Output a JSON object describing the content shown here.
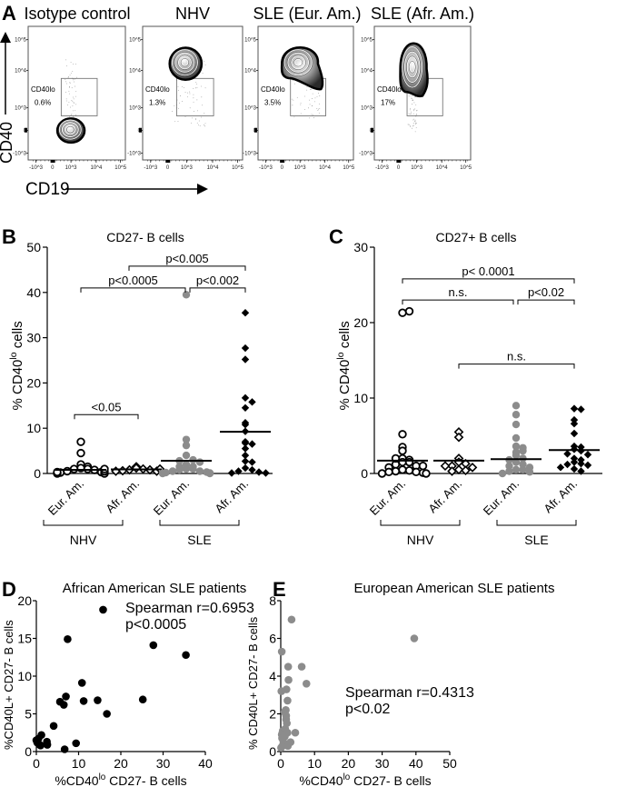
{
  "colors": {
    "black": "#000000",
    "gray_marker": "#8c8c8c",
    "axis": "#000000"
  },
  "panel_a": {
    "letter": "A",
    "y_axis_label": "CD40",
    "x_axis_label": "CD19",
    "tick_labels": [
      "-10^3",
      "0",
      "10^3",
      "10^4",
      "10^5"
    ],
    "plots": [
      {
        "title": "Isotype control",
        "gate_label": "CD40lo",
        "gate_percent": "0.6%"
      },
      {
        "title": "NHV",
        "gate_label": "CD40lo",
        "gate_percent": "1.3%"
      },
      {
        "title": "SLE (Eur. Am.)",
        "gate_label": "CD40lo",
        "gate_percent": "3.5%"
      },
      {
        "title": "SLE (Afr. Am.)",
        "gate_label": "CD40lo",
        "gate_percent": "17%"
      }
    ]
  },
  "chart_data": [
    {
      "panel": "B",
      "type": "scatter",
      "title": "CD27- B cells",
      "ylabel": {
        "main": "% CD40",
        "sup": "lo",
        "tail": " cells"
      },
      "ylim": [
        0,
        50
      ],
      "yticks": [
        "0",
        "10",
        "20",
        "30",
        "40",
        "50"
      ],
      "categories": [
        "Eur. Am.",
        "Afr. Am.",
        "Eur. Am.",
        "Afr. Am."
      ],
      "groups": [
        {
          "label": "NHV",
          "categories": [
            0,
            1
          ]
        },
        {
          "label": "SLE",
          "categories": [
            2,
            3
          ]
        }
      ],
      "series": [
        {
          "marker": "open-circle",
          "mean": 0.8,
          "values": [
            7,
            4.5,
            2,
            1.5,
            1.2,
            1,
            1,
            0.8,
            0.5,
            0.3,
            0.2,
            0.1,
            0.1,
            0,
            0,
            0.5,
            0.3,
            1
          ]
        },
        {
          "marker": "open-diamond",
          "mean": 0.9,
          "values": [
            1.5,
            1.2,
            1,
            0.8,
            0.8,
            0.6,
            0.5,
            0.5,
            1
          ]
        },
        {
          "marker": "gray-circle",
          "mean": 2.8,
          "values": [
            39.5,
            7.5,
            6.2,
            4,
            3,
            2.8,
            2,
            1.5,
            1,
            1,
            0.8,
            0.5,
            0.5,
            0.3,
            0.2,
            0.1,
            0,
            0,
            1.5,
            2.5
          ]
        },
        {
          "marker": "black-diamond",
          "mean": 9.2,
          "values": [
            35.5,
            27.7,
            25.2,
            16.7,
            15.8,
            14.5,
            11.2,
            10.8,
            9.3,
            7,
            6.7,
            6.5,
            5.5,
            4,
            2.7,
            2.5,
            1.2,
            0.8,
            0.5,
            0.3,
            0.1,
            0.1
          ]
        }
      ],
      "comparisons": [
        {
          "from": 0,
          "to": 1,
          "level": 13,
          "label": "<0.05"
        },
        {
          "from": 0,
          "to": 2,
          "level": 41,
          "label": "p<0.0005"
        },
        {
          "from": 2,
          "to": 3,
          "level": 41,
          "label": "p<0.002"
        },
        {
          "from": 1,
          "to": 3,
          "level": 45.8,
          "label": "p<0.005"
        }
      ]
    },
    {
      "panel": "C",
      "type": "scatter",
      "title": "CD27+ B cells",
      "ylabel": {
        "main": "% CD40",
        "sup": "lo",
        "tail": " cells"
      },
      "ylim": [
        0,
        30
      ],
      "yticks": [
        "0",
        "10",
        "20",
        "30"
      ],
      "categories": [
        "Eur. Am.",
        "Afr. Am.",
        "Eur. Am.",
        "Afr. Am."
      ],
      "groups": [
        {
          "label": "NHV",
          "categories": [
            0,
            1
          ]
        },
        {
          "label": "SLE",
          "categories": [
            2,
            3
          ]
        }
      ],
      "series": [
        {
          "marker": "open-circle",
          "mean": 1.7,
          "values": [
            21.3,
            21.5,
            5.2,
            3.5,
            3,
            2,
            1.8,
            1.5,
            1.5,
            1.2,
            1,
            0.8,
            0.5,
            0.4,
            0.3,
            0.2,
            0.2,
            0.1,
            0,
            0,
            2,
            1
          ]
        },
        {
          "marker": "open-diamond",
          "mean": 1.7,
          "values": [
            5.5,
            4.8,
            2,
            1.5,
            1.3,
            1,
            0.8,
            0.5,
            0.4,
            0.3,
            1
          ]
        },
        {
          "marker": "gray-circle",
          "mean": 1.9,
          "values": [
            9,
            7.8,
            6.5,
            4.7,
            3.6,
            3.4,
            2.8,
            2.4,
            2,
            1.8,
            1.5,
            1.2,
            1,
            0.8,
            0.5,
            0.5,
            0.3,
            0.2,
            0,
            3
          ]
        },
        {
          "marker": "black-diamond",
          "mean": 3.1,
          "values": [
            8.6,
            8.5,
            7.1,
            6.6,
            5.3,
            3.6,
            3.5,
            3.2,
            3,
            2.6,
            2.5,
            2,
            1.8,
            1.5,
            1.3,
            1.2,
            1.1,
            0.8,
            0.6,
            0.3
          ]
        }
      ],
      "comparisons": [
        {
          "from": 0,
          "to": 3,
          "level": 25.8,
          "label": "p< 0.0001"
        },
        {
          "from": 0,
          "to": 2,
          "level": 23,
          "label": "n.s."
        },
        {
          "from": 2,
          "to": 3,
          "level": 23,
          "label": "p<0.02"
        },
        {
          "from": 1,
          "to": 3,
          "level": 14.5,
          "label": "n.s."
        }
      ]
    },
    {
      "panel": "D",
      "type": "scatter",
      "title": "African American SLE patients",
      "xlabel": {
        "main": "%CD40",
        "sup": "lo",
        "tail": " CD27- B cells"
      },
      "ylabel": "%CD40L+ CD27- B cells",
      "xlim": [
        0,
        40
      ],
      "ylim": [
        0,
        20
      ],
      "xticks": [
        0,
        10,
        20,
        30,
        40
      ],
      "yticks": [
        0,
        5,
        10,
        15,
        20
      ],
      "annotation": [
        "Spearman r=0.6953",
        "p<0.0005"
      ],
      "marker_color": "#000000",
      "points": [
        [
          0,
          1.5
        ],
        [
          0.2,
          1.2
        ],
        [
          0.5,
          1.7
        ],
        [
          0.8,
          0.9
        ],
        [
          1,
          0.8
        ],
        [
          1.2,
          2.2
        ],
        [
          2.5,
          1.3
        ],
        [
          2.6,
          0.9
        ],
        [
          4.1,
          3.4
        ],
        [
          5.6,
          6.6
        ],
        [
          6.5,
          6.2
        ],
        [
          6.7,
          0.3
        ],
        [
          7,
          7.3
        ],
        [
          7.4,
          14.9
        ],
        [
          9.4,
          1.1
        ],
        [
          10.8,
          9.1
        ],
        [
          11.2,
          6.7
        ],
        [
          14.5,
          6.8
        ],
        [
          15.8,
          18.8
        ],
        [
          16.7,
          5
        ],
        [
          25.2,
          6.9
        ],
        [
          27.7,
          14.1
        ],
        [
          35.4,
          12.8
        ]
      ]
    },
    {
      "panel": "E",
      "type": "scatter",
      "title": "European American SLE patients",
      "xlabel": {
        "main": "%CD40",
        "sup": "lo",
        "tail": " CD27- B cells"
      },
      "ylabel": "% CD40L+ CD27- B cells",
      "xlim": [
        0,
        50
      ],
      "ylim": [
        0,
        8
      ],
      "xticks": [
        0,
        10,
        20,
        30,
        40,
        50
      ],
      "yticks": [
        0,
        2,
        4,
        6,
        8
      ],
      "annotation": [
        "Spearman r=0.4313",
        "p<0.02"
      ],
      "marker_color": "#8c8c8c",
      "points": [
        [
          0.3,
          5.3
        ],
        [
          0.2,
          3.2
        ],
        [
          0.5,
          0.3
        ],
        [
          0.3,
          0.9
        ],
        [
          0.5,
          1
        ],
        [
          0.6,
          1.1
        ],
        [
          0.8,
          0.5
        ],
        [
          1,
          1
        ],
        [
          1.1,
          2.1
        ],
        [
          1.3,
          1.2
        ],
        [
          1.5,
          2.2
        ],
        [
          1.6,
          1.9
        ],
        [
          1.7,
          3.3
        ],
        [
          1.8,
          1.5
        ],
        [
          1.6,
          1.7
        ],
        [
          2,
          2.7
        ],
        [
          2.1,
          0.3
        ],
        [
          2.2,
          4.5
        ],
        [
          2.3,
          3.8
        ],
        [
          2,
          1
        ],
        [
          2.9,
          0.5
        ],
        [
          3.2,
          7
        ],
        [
          4.3,
          1
        ],
        [
          6.2,
          4.5
        ],
        [
          7.6,
          3.6
        ],
        [
          39.5,
          6
        ],
        [
          0.1,
          0.2
        ],
        [
          0.4,
          0.7
        ],
        [
          1.2,
          0.8
        ]
      ]
    }
  ]
}
